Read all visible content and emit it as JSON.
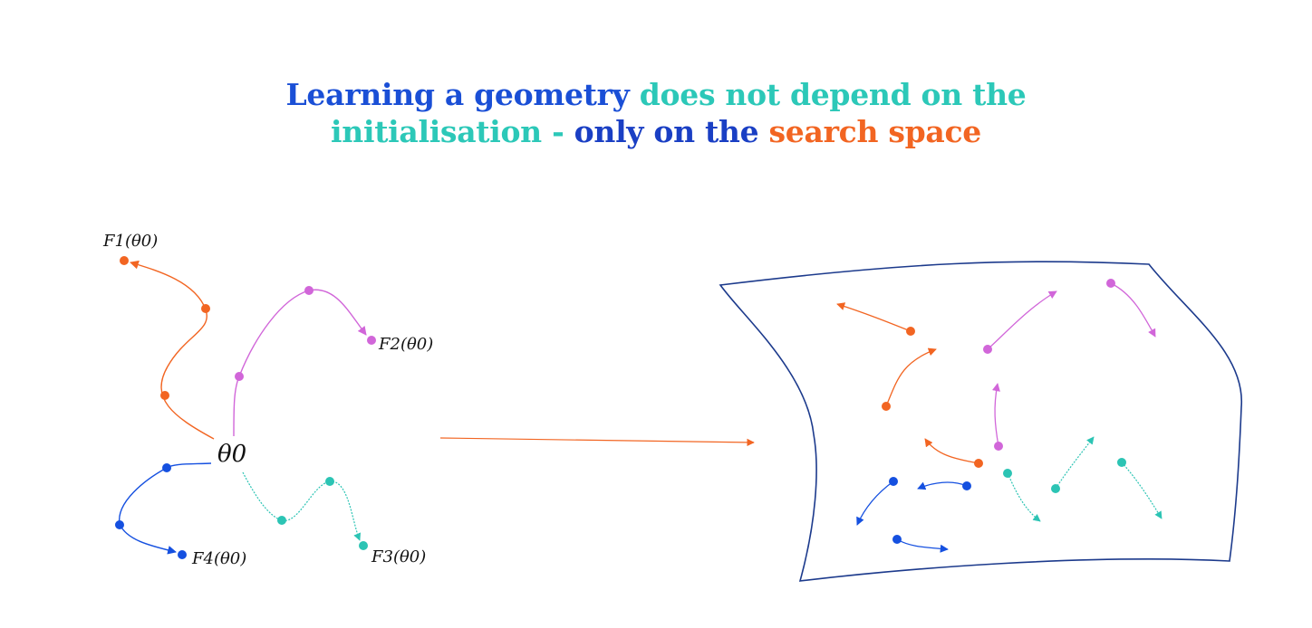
{
  "title": {
    "part1": "Learning a geometry",
    "part2": "does not depend on the",
    "part3": "initialisation -",
    "part4": "only on the",
    "part5": "search space"
  },
  "labels": {
    "theta0": "θ0",
    "f1": "F1(θ0)",
    "f2": "F2(θ0)",
    "f3": "F3(θ0)",
    "f4": "F4(θ0)"
  },
  "colors": {
    "orange": "#f26522",
    "magenta": "#d166d9",
    "teal": "#2cc4b4",
    "blue": "#1550e0",
    "navy": "#1c3a8c"
  }
}
